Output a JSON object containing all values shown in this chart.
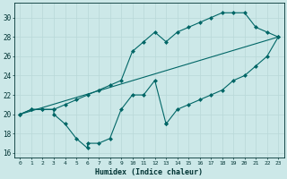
{
  "xlabel": "Humidex (Indice chaleur)",
  "background_color": "#cce8e8",
  "grid_color": "#aacccc",
  "line_color": "#006666",
  "xlim": [
    -0.5,
    23.5
  ],
  "ylim": [
    15.5,
    31.5
  ],
  "xticks": [
    0,
    1,
    2,
    3,
    4,
    5,
    6,
    7,
    8,
    9,
    10,
    11,
    12,
    13,
    14,
    15,
    16,
    17,
    18,
    19,
    20,
    21,
    22,
    23
  ],
  "yticks": [
    16,
    18,
    20,
    22,
    24,
    26,
    28,
    30
  ],
  "line1_x": [
    0,
    1,
    2,
    3,
    4,
    5,
    6,
    7,
    8,
    9,
    10,
    11,
    12,
    13,
    14,
    15,
    16,
    17,
    18,
    19,
    20,
    21,
    22,
    23
  ],
  "line1_y": [
    20.0,
    20.5,
    20.5,
    20.5,
    21.0,
    21.5,
    22.0,
    22.5,
    23.0,
    23.5,
    26.5,
    27.5,
    28.5,
    27.5,
    28.5,
    29.0,
    29.5,
    30.0,
    30.5,
    30.5,
    30.5,
    29.0,
    28.5,
    28.0
  ],
  "line2_x": [
    0,
    1,
    2,
    3,
    3,
    4,
    5,
    6,
    6,
    7,
    8,
    9,
    10,
    11,
    12,
    13
  ],
  "line2_y": [
    20.0,
    20.5,
    20.5,
    20.5,
    20.0,
    19.0,
    17.5,
    16.5,
    17.0,
    17.0,
    17.5,
    20.5,
    22.0,
    22.0,
    23.5,
    19.0
  ],
  "line2b_x": [
    13,
    14,
    15,
    16,
    17,
    18,
    19,
    20,
    21,
    22,
    23
  ],
  "line2b_y": [
    19.0,
    20.5,
    21.0,
    21.5,
    22.0,
    22.5,
    23.5,
    24.0,
    25.0,
    26.0,
    28.0
  ],
  "line3_x": [
    0,
    23
  ],
  "line3_y": [
    20,
    28
  ]
}
